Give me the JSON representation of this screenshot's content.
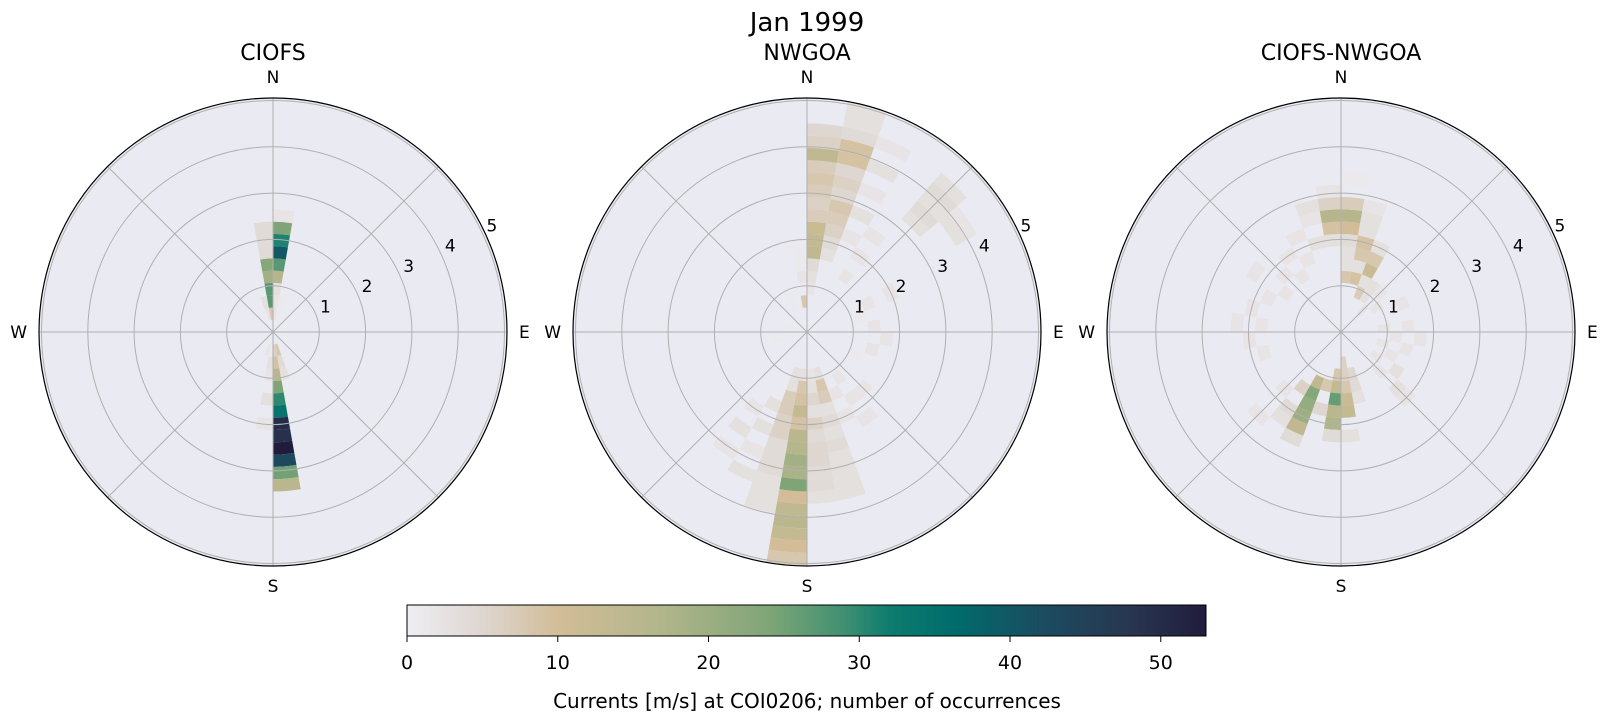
{
  "suptitle": "Jan 1999",
  "colorbar": {
    "label": "Currents [m/s] at COI0206; number of occurrences",
    "range": [
      0,
      53
    ],
    "ticks": [
      "0",
      "10",
      "20",
      "30",
      "40",
      "50"
    ],
    "colormap": [
      [
        0,
        "#eeeef3"
      ],
      [
        5,
        "#ded6d0"
      ],
      [
        10,
        "#d2bd98"
      ],
      [
        17,
        "#b1b58a"
      ],
      [
        24,
        "#7fa577"
      ],
      [
        29,
        "#3f9071"
      ],
      [
        32,
        "#0e7c6f"
      ],
      [
        36.5,
        "#006b6b"
      ],
      [
        42,
        "#1b4c60"
      ],
      [
        48,
        "#283651"
      ],
      [
        53,
        "#211c3c"
      ]
    ]
  },
  "chart_data": [
    {
      "type": "heatmap",
      "projection": "polar",
      "title": "CIOFS",
      "direction_labels": {
        "n": "N",
        "e": "E",
        "s": "S",
        "w": "W"
      },
      "rticks": [
        "1",
        "2",
        "3",
        "4",
        "5"
      ],
      "rlim": [
        0,
        5
      ],
      "direction_bin_deg": 10,
      "speed_bin_width": 0.265,
      "cells_format": "[direction_bin_start_deg, speed_bin_index, count]",
      "cells": [
        [
          0,
          1,
          2
        ],
        [
          0,
          2,
          2
        ],
        [
          0,
          3,
          3
        ],
        [
          0,
          4,
          16
        ],
        [
          0,
          5,
          27
        ],
        [
          0,
          6,
          40
        ],
        [
          0,
          7,
          31
        ],
        [
          0,
          8,
          24
        ],
        [
          0,
          9,
          2
        ],
        [
          350,
          1,
          8
        ],
        [
          350,
          2,
          27
        ],
        [
          350,
          3,
          27
        ],
        [
          350,
          4,
          19
        ],
        [
          350,
          5,
          23
        ],
        [
          350,
          6,
          4
        ],
        [
          350,
          7,
          4
        ],
        [
          350,
          8,
          4
        ],
        [
          340,
          1,
          2
        ],
        [
          340,
          2,
          3
        ],
        [
          10,
          1,
          1
        ],
        [
          10,
          2,
          1
        ],
        [
          170,
          1,
          6
        ],
        [
          170,
          2,
          9
        ],
        [
          170,
          3,
          15
        ],
        [
          170,
          4,
          24
        ],
        [
          170,
          5,
          30
        ],
        [
          170,
          6,
          34
        ],
        [
          170,
          7,
          50
        ],
        [
          170,
          8,
          49
        ],
        [
          170,
          9,
          53
        ],
        [
          170,
          10,
          43
        ],
        [
          170,
          11,
          25
        ],
        [
          170,
          12,
          15
        ],
        [
          180,
          2,
          3
        ],
        [
          180,
          3,
          2
        ],
        [
          180,
          5,
          3
        ],
        [
          180,
          7,
          2
        ],
        [
          160,
          1,
          8
        ],
        [
          160,
          2,
          4
        ],
        [
          160,
          3,
          3
        ],
        [
          190,
          1,
          2
        ],
        [
          200,
          0,
          1
        ],
        [
          30,
          0,
          1
        ],
        [
          100,
          0,
          1
        ],
        [
          240,
          0,
          1
        ]
      ]
    },
    {
      "type": "heatmap",
      "projection": "polar",
      "title": "NWGOA",
      "direction_labels": {
        "n": "N",
        "e": "E",
        "s": "S",
        "w": "W"
      },
      "rticks": [
        "1",
        "2",
        "3",
        "4",
        "5"
      ],
      "rlim": [
        0,
        5
      ],
      "direction_bin_deg": 10,
      "speed_bin_width": 0.265,
      "cells_format": "[direction_bin_start_deg, speed_bin_index, count]",
      "cells": [
        [
          0,
          3,
          2
        ],
        [
          0,
          4,
          3
        ],
        [
          0,
          5,
          4
        ],
        [
          0,
          6,
          14
        ],
        [
          0,
          7,
          13
        ],
        [
          0,
          8,
          12
        ],
        [
          0,
          9,
          7
        ],
        [
          0,
          10,
          6
        ],
        [
          0,
          11,
          7
        ],
        [
          0,
          12,
          8
        ],
        [
          0,
          13,
          7
        ],
        [
          0,
          14,
          14
        ],
        [
          0,
          15,
          6
        ],
        [
          0,
          16,
          5
        ],
        [
          350,
          2,
          8
        ],
        [
          350,
          4,
          2
        ],
        [
          350,
          5,
          1
        ],
        [
          350,
          6,
          1
        ],
        [
          10,
          6,
          3
        ],
        [
          10,
          7,
          4
        ],
        [
          10,
          8,
          6
        ],
        [
          10,
          9,
          7
        ],
        [
          10,
          10,
          8
        ],
        [
          10,
          11,
          5
        ],
        [
          10,
          12,
          6
        ],
        [
          10,
          13,
          5
        ],
        [
          10,
          14,
          9
        ],
        [
          10,
          15,
          9
        ],
        [
          10,
          16,
          4
        ],
        [
          10,
          17,
          3
        ],
        [
          10,
          18,
          3
        ],
        [
          20,
          8,
          2
        ],
        [
          20,
          10,
          3
        ],
        [
          20,
          12,
          2
        ],
        [
          20,
          14,
          3
        ],
        [
          20,
          16,
          2
        ],
        [
          30,
          5,
          2
        ],
        [
          30,
          7,
          2
        ],
        [
          30,
          9,
          2
        ],
        [
          40,
          12,
          3
        ],
        [
          40,
          13,
          4
        ],
        [
          40,
          14,
          3
        ],
        [
          40,
          15,
          4
        ],
        [
          40,
          16,
          3
        ],
        [
          50,
          14,
          3
        ],
        [
          50,
          15,
          2
        ],
        [
          60,
          5,
          2
        ],
        [
          60,
          7,
          2
        ],
        [
          70,
          4,
          1
        ],
        [
          80,
          5,
          2
        ],
        [
          90,
          6,
          2
        ],
        [
          100,
          5,
          2
        ],
        [
          110,
          4,
          1
        ],
        [
          180,
          3,
          3
        ],
        [
          180,
          4,
          8
        ],
        [
          180,
          5,
          9
        ],
        [
          180,
          6,
          13
        ],
        [
          180,
          7,
          9
        ],
        [
          180,
          8,
          15
        ],
        [
          180,
          9,
          16
        ],
        [
          180,
          10,
          19
        ],
        [
          180,
          11,
          18
        ],
        [
          180,
          12,
          24
        ],
        [
          180,
          13,
          10
        ],
        [
          180,
          14,
          14
        ],
        [
          180,
          15,
          15
        ],
        [
          180,
          16,
          13
        ],
        [
          180,
          17,
          10
        ],
        [
          180,
          18,
          8
        ],
        [
          170,
          3,
          2
        ],
        [
          170,
          4,
          3
        ],
        [
          170,
          5,
          5
        ],
        [
          170,
          6,
          3
        ],
        [
          170,
          7,
          6
        ],
        [
          170,
          8,
          4
        ],
        [
          170,
          9,
          5
        ],
        [
          170,
          10,
          5
        ],
        [
          170,
          11,
          4
        ],
        [
          170,
          12,
          4
        ],
        [
          170,
          13,
          3
        ],
        [
          160,
          3,
          3
        ],
        [
          160,
          4,
          8
        ],
        [
          160,
          5,
          7
        ],
        [
          160,
          6,
          3
        ],
        [
          160,
          7,
          4
        ],
        [
          160,
          8,
          3
        ],
        [
          160,
          9,
          4
        ],
        [
          160,
          10,
          3
        ],
        [
          160,
          11,
          3
        ],
        [
          160,
          12,
          3
        ],
        [
          160,
          13,
          3
        ],
        [
          190,
          3,
          3
        ],
        [
          190,
          4,
          3
        ],
        [
          190,
          5,
          7
        ],
        [
          190,
          6,
          7
        ],
        [
          190,
          7,
          6
        ],
        [
          190,
          8,
          6
        ],
        [
          190,
          9,
          4
        ],
        [
          190,
          10,
          4
        ],
        [
          190,
          11,
          4
        ],
        [
          190,
          12,
          3
        ],
        [
          190,
          13,
          3
        ],
        [
          190,
          14,
          3
        ],
        [
          200,
          6,
          3
        ],
        [
          200,
          8,
          3
        ],
        [
          200,
          10,
          2
        ],
        [
          200,
          12,
          3
        ],
        [
          210,
          7,
          2
        ],
        [
          210,
          9,
          3
        ],
        [
          210,
          11,
          2
        ],
        [
          140,
          4,
          2
        ],
        [
          140,
          6,
          2
        ],
        [
          140,
          8,
          2
        ],
        [
          150,
          5,
          2
        ],
        [
          150,
          7,
          2
        ],
        [
          130,
          6,
          2
        ],
        [
          250,
          2,
          1
        ],
        [
          280,
          1,
          1
        ],
        [
          330,
          2,
          1
        ]
      ]
    },
    {
      "type": "heatmap",
      "projection": "polar",
      "title": "CIOFS-NWGOA",
      "direction_labels": {
        "n": "N",
        "e": "E",
        "s": "S",
        "w": "W"
      },
      "rticks": [
        "1",
        "2",
        "3",
        "4",
        "5"
      ],
      "rlim": [
        0,
        5
      ],
      "direction_bin_deg": 10,
      "speed_bin_width": 0.265,
      "cells_format": "[direction_bin_start_deg, speed_bin_index, count]",
      "cells": [
        [
          0,
          4,
          8
        ],
        [
          0,
          5,
          3
        ],
        [
          0,
          6,
          3
        ],
        [
          0,
          7,
          4
        ],
        [
          0,
          8,
          10
        ],
        [
          0,
          9,
          16
        ],
        [
          0,
          10,
          7
        ],
        [
          0,
          12,
          1
        ],
        [
          350,
          7,
          3
        ],
        [
          350,
          8,
          9
        ],
        [
          350,
          9,
          16
        ],
        [
          350,
          10,
          6
        ],
        [
          350,
          11,
          2
        ],
        [
          340,
          7,
          3
        ],
        [
          340,
          9,
          2
        ],
        [
          340,
          10,
          3
        ],
        [
          330,
          6,
          2
        ],
        [
          330,
          8,
          2
        ],
        [
          320,
          5,
          2
        ],
        [
          320,
          7,
          2
        ],
        [
          310,
          6,
          2
        ],
        [
          300,
          5,
          2
        ],
        [
          300,
          8,
          2
        ],
        [
          10,
          4,
          9
        ],
        [
          10,
          5,
          3
        ],
        [
          10,
          6,
          8
        ],
        [
          10,
          7,
          9
        ],
        [
          10,
          8,
          3
        ],
        [
          10,
          9,
          3
        ],
        [
          10,
          10,
          2
        ],
        [
          20,
          3,
          7
        ],
        [
          20,
          4,
          3
        ],
        [
          20,
          5,
          12
        ],
        [
          20,
          6,
          8
        ],
        [
          20,
          7,
          3
        ],
        [
          30,
          3,
          3
        ],
        [
          30,
          4,
          3
        ],
        [
          40,
          2,
          2
        ],
        [
          40,
          4,
          2
        ],
        [
          50,
          3,
          2
        ],
        [
          60,
          5,
          2
        ],
        [
          80,
          3,
          2
        ],
        [
          80,
          5,
          2
        ],
        [
          90,
          4,
          2
        ],
        [
          90,
          6,
          2
        ],
        [
          100,
          3,
          2
        ],
        [
          100,
          5,
          2
        ],
        [
          110,
          4,
          2
        ],
        [
          120,
          3,
          2
        ],
        [
          120,
          5,
          3
        ],
        [
          130,
          4,
          2
        ],
        [
          130,
          6,
          3
        ],
        [
          130,
          7,
          2
        ],
        [
          160,
          3,
          5
        ],
        [
          160,
          4,
          4
        ],
        [
          160,
          5,
          3
        ],
        [
          170,
          2,
          6
        ],
        [
          170,
          3,
          6
        ],
        [
          170,
          4,
          8
        ],
        [
          170,
          5,
          12
        ],
        [
          170,
          6,
          13
        ],
        [
          170,
          8,
          3
        ],
        [
          180,
          3,
          8
        ],
        [
          180,
          4,
          13
        ],
        [
          180,
          5,
          26
        ],
        [
          180,
          6,
          15
        ],
        [
          180,
          7,
          17
        ],
        [
          180,
          8,
          4
        ],
        [
          200,
          4,
          14
        ],
        [
          200,
          5,
          23
        ],
        [
          200,
          6,
          21
        ],
        [
          200,
          7,
          20
        ],
        [
          200,
          8,
          14
        ],
        [
          200,
          9,
          4
        ],
        [
          190,
          4,
          8
        ],
        [
          190,
          6,
          5
        ],
        [
          210,
          5,
          6
        ],
        [
          210,
          7,
          4
        ],
        [
          210,
          8,
          3
        ],
        [
          220,
          6,
          2
        ],
        [
          220,
          9,
          2
        ],
        [
          250,
          6,
          2
        ],
        [
          260,
          7,
          2
        ],
        [
          270,
          6,
          2
        ],
        [
          270,
          8,
          2
        ],
        [
          280,
          7,
          2
        ],
        [
          290,
          6,
          2
        ]
      ]
    }
  ]
}
